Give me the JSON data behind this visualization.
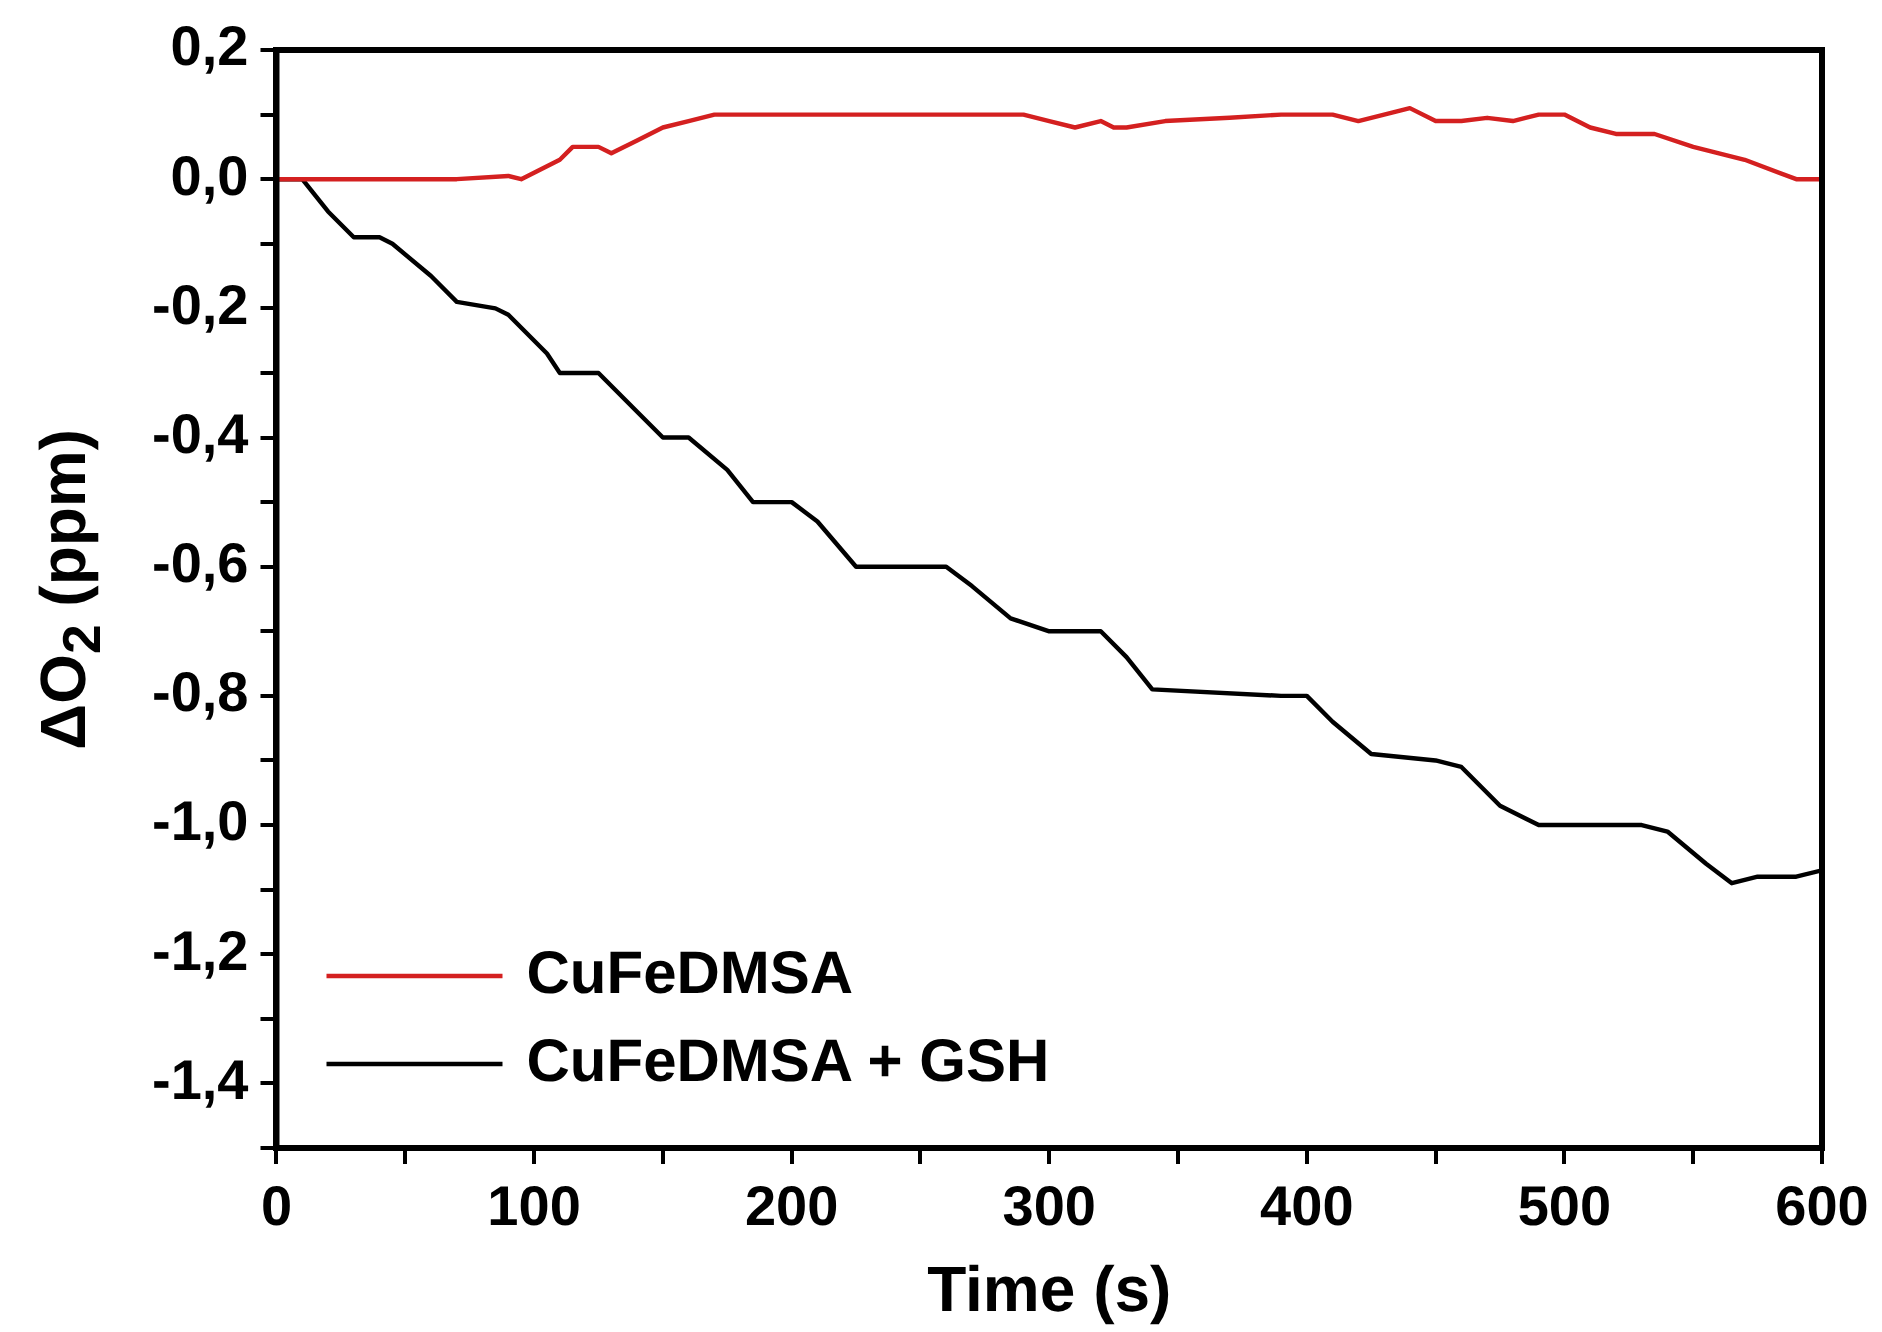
{
  "chart_data": {
    "type": "line",
    "xlabel": "Time (s)",
    "ylabel": "ΔO$_{2}$ (ppm)",
    "xlim": [
      0,
      600
    ],
    "ylim": [
      -1.5,
      0.2
    ],
    "xticks": [
      0,
      {
        "value": 50,
        "label": null
      },
      100,
      {
        "value": 150,
        "label": null
      },
      200,
      {
        "value": 250,
        "label": null
      },
      300,
      {
        "value": 350,
        "label": null
      },
      400,
      {
        "value": 450,
        "label": null
      },
      500,
      {
        "value": 550,
        "label": null
      },
      600
    ],
    "yticks": [
      {
        "value": -1.5,
        "label": null
      },
      {
        "value": -1.4,
        "label": "-1,4"
      },
      {
        "value": -1.3,
        "label": null
      },
      {
        "value": -1.2,
        "label": "-1,2"
      },
      {
        "value": -1.1,
        "label": null
      },
      {
        "value": -1.0,
        "label": "-1,0"
      },
      {
        "value": -0.9,
        "label": null
      },
      {
        "value": -0.8,
        "label": "-0,8"
      },
      {
        "value": -0.7,
        "label": null
      },
      {
        "value": -0.6,
        "label": "-0,6"
      },
      {
        "value": -0.5,
        "label": null
      },
      {
        "value": -0.4,
        "label": "-0,4"
      },
      {
        "value": -0.3,
        "label": null
      },
      {
        "value": -0.2,
        "label": "-0,2"
      },
      {
        "value": -0.1,
        "label": null
      },
      {
        "value": 0,
        "label": "0,0"
      },
      {
        "value": 0.1,
        "label": null
      },
      {
        "value": 0.2,
        "label": "0,2"
      }
    ],
    "grid": false,
    "legend": "bottom left",
    "marker": "none",
    "line_style": "solid",
    "series": [
      {
        "name": "CuFeDMSA",
        "color": "#d42020",
        "x": [
          0,
          70,
          90,
          95,
          100,
          110,
          115,
          125,
          130,
          140,
          150,
          160,
          170,
          290,
          300,
          310,
          320,
          325,
          330,
          345,
          370,
          390,
          410,
          420,
          440,
          450,
          460,
          470,
          480,
          490,
          500,
          510,
          520,
          535,
          550,
          570,
          590,
          600
        ],
        "values": [
          0,
          0,
          0.005,
          0,
          0.01,
          0.03,
          0.05,
          0.05,
          0.04,
          0.06,
          0.08,
          0.09,
          0.1,
          0.1,
          0.09,
          0.08,
          0.09,
          0.08,
          0.08,
          0.09,
          0.095,
          0.1,
          0.1,
          0.09,
          0.11,
          0.09,
          0.09,
          0.095,
          0.09,
          0.1,
          0.1,
          0.08,
          0.07,
          0.07,
          0.05,
          0.03,
          0,
          0
        ]
      },
      {
        "name": "CuFeDMSA + GSH",
        "color": "#000000",
        "x": [
          0,
          10,
          20,
          30,
          40,
          45,
          60,
          70,
          85,
          90,
          105,
          110,
          125,
          140,
          150,
          160,
          175,
          185,
          200,
          210,
          225,
          260,
          270,
          285,
          300,
          320,
          330,
          340,
          390,
          400,
          410,
          425,
          450,
          460,
          475,
          490,
          530,
          540,
          555,
          565,
          575,
          590,
          600
        ],
        "values": [
          0,
          0,
          -0.05,
          -0.09,
          -0.09,
          -0.1,
          -0.15,
          -0.19,
          -0.2,
          -0.21,
          -0.27,
          -0.3,
          -0.3,
          -0.36,
          -0.4,
          -0.4,
          -0.45,
          -0.5,
          -0.5,
          -0.53,
          -0.6,
          -0.6,
          -0.63,
          -0.68,
          -0.7,
          -0.7,
          -0.74,
          -0.79,
          -0.8,
          -0.8,
          -0.84,
          -0.89,
          -0.9,
          -0.91,
          -0.97,
          -1.0,
          -1.0,
          -1.01,
          -1.06,
          -1.09,
          -1.08,
          -1.08,
          -1.07
        ]
      }
    ]
  }
}
